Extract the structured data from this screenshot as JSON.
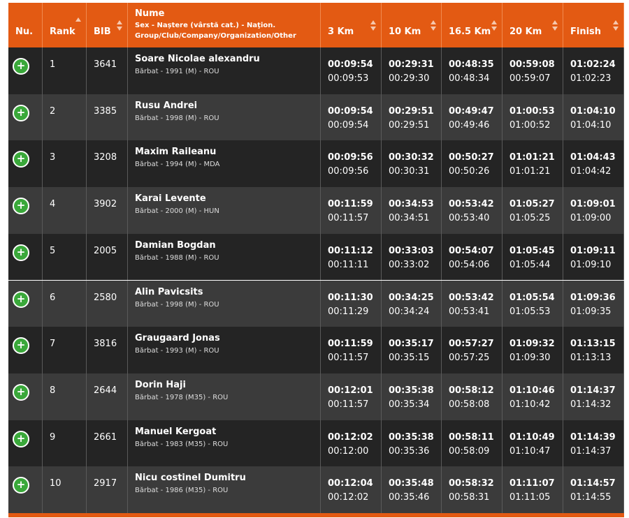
{
  "header": {
    "columns": [
      "Nu.",
      "Rank",
      "BIB",
      "Nume",
      "3 Km",
      "10 Km",
      "16.5 Km",
      "20 Km",
      "Finish"
    ],
    "nume_subtitle": "Sex - Naștere (vârstă cat.) - Naţion. Group/Club/Company/Organization/Other"
  },
  "rows": [
    {
      "rank": 1,
      "bib": 3641,
      "name": "Soare Nicolae alexandru",
      "details": "Bărbat - 1991 (M) - ROU",
      "times": [
        [
          "00:09:54",
          "00:09:53"
        ],
        [
          "00:29:31",
          "00:29:30"
        ],
        [
          "00:48:35",
          "00:48:34"
        ],
        [
          "00:59:08",
          "00:59:07"
        ],
        [
          "01:02:24",
          "01:02:23"
        ]
      ]
    },
    {
      "rank": 2,
      "bib": 3385,
      "name": "Rusu Andrei",
      "details": "Bărbat - 1998 (M) - ROU",
      "times": [
        [
          "00:09:54",
          "00:09:54"
        ],
        [
          "00:29:51",
          "00:29:51"
        ],
        [
          "00:49:47",
          "00:49:46"
        ],
        [
          "01:00:53",
          "01:00:52"
        ],
        [
          "01:04:10",
          "01:04:10"
        ]
      ]
    },
    {
      "rank": 3,
      "bib": 3208,
      "name": "Maxim Raileanu",
      "details": "Bărbat - 1994 (M) - MDA",
      "times": [
        [
          "00:09:56",
          "00:09:56"
        ],
        [
          "00:30:32",
          "00:30:31"
        ],
        [
          "00:50:27",
          "00:50:26"
        ],
        [
          "01:01:21",
          "01:01:21"
        ],
        [
          "01:04:43",
          "01:04:42"
        ]
      ]
    },
    {
      "rank": 4,
      "bib": 3902,
      "name": "Karai Levente",
      "details": "Bărbat - 2000 (M) - HUN",
      "times": [
        [
          "00:11:59",
          "00:11:57"
        ],
        [
          "00:34:53",
          "00:34:51"
        ],
        [
          "00:53:42",
          "00:53:40"
        ],
        [
          "01:05:27",
          "01:05:25"
        ],
        [
          "01:09:01",
          "01:09:00"
        ]
      ]
    },
    {
      "rank": 5,
      "bib": 2005,
      "name": "Damian Bogdan",
      "details": "Bărbat - 1988 (M) - ROU",
      "times": [
        [
          "00:11:12",
          "00:11:11"
        ],
        [
          "00:33:03",
          "00:33:02"
        ],
        [
          "00:54:07",
          "00:54:06"
        ],
        [
          "01:05:45",
          "01:05:44"
        ],
        [
          "01:09:11",
          "01:09:10"
        ]
      ]
    },
    {
      "rank": 6,
      "bib": 2580,
      "name": "Alin Pavicsits",
      "details": "Bărbat - 1998 (M) - ROU",
      "times": [
        [
          "00:11:30",
          "00:11:29"
        ],
        [
          "00:34:25",
          "00:34:24"
        ],
        [
          "00:53:42",
          "00:53:41"
        ],
        [
          "01:05:54",
          "01:05:53"
        ],
        [
          "01:09:36",
          "01:09:35"
        ]
      ]
    },
    {
      "rank": 7,
      "bib": 3816,
      "name": "Graugaard Jonas",
      "details": "Bărbat - 1993 (M) - ROU",
      "times": [
        [
          "00:11:59",
          "00:11:57"
        ],
        [
          "00:35:17",
          "00:35:15"
        ],
        [
          "00:57:27",
          "00:57:25"
        ],
        [
          "01:09:32",
          "01:09:30"
        ],
        [
          "01:13:15",
          "01:13:13"
        ]
      ]
    },
    {
      "rank": 8,
      "bib": 2644,
      "name": "Dorin Haji",
      "details": "Bărbat - 1978 (M35) - ROU",
      "times": [
        [
          "00:12:01",
          "00:11:57"
        ],
        [
          "00:35:38",
          "00:35:34"
        ],
        [
          "00:58:12",
          "00:58:08"
        ],
        [
          "01:10:46",
          "01:10:42"
        ],
        [
          "01:14:37",
          "01:14:32"
        ]
      ]
    },
    {
      "rank": 9,
      "bib": 2661,
      "name": "Manuel Kergoat",
      "details": "Bărbat - 1983 (M35) - ROU",
      "times": [
        [
          "00:12:02",
          "00:12:00"
        ],
        [
          "00:35:38",
          "00:35:36"
        ],
        [
          "00:58:11",
          "00:58:09"
        ],
        [
          "01:10:49",
          "01:10:47"
        ],
        [
          "01:14:39",
          "01:14:37"
        ]
      ]
    },
    {
      "rank": 10,
      "bib": 2917,
      "name": "Nicu costinel Dumitru",
      "details": "Bărbat - 1986 (M35) - ROU",
      "times": [
        [
          "00:12:04",
          "00:12:02"
        ],
        [
          "00:35:48",
          "00:35:46"
        ],
        [
          "00:58:32",
          "00:58:31"
        ],
        [
          "01:11:07",
          "01:11:05"
        ],
        [
          "01:14:57",
          "01:14:55"
        ]
      ]
    }
  ]
}
